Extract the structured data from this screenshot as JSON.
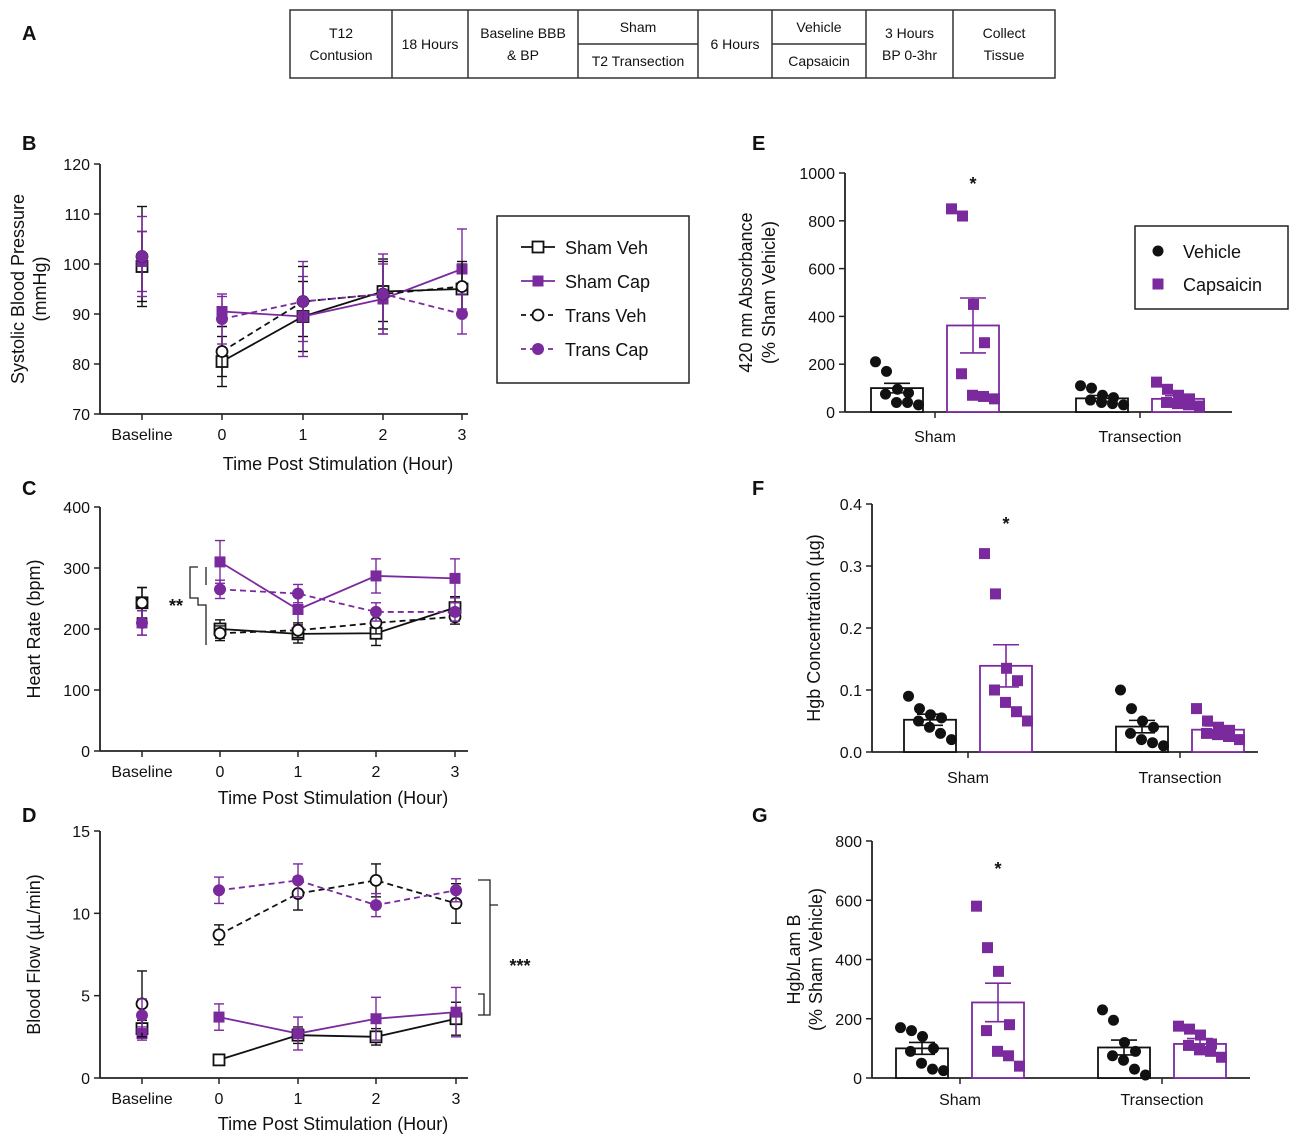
{
  "panels": {
    "A": "A",
    "B": "B",
    "C": "C",
    "D": "D",
    "E": "E",
    "F": "F",
    "G": "G"
  },
  "colors": {
    "purple": "#7B2A9E",
    "black": "#111111"
  },
  "protocol": {
    "steps": [
      {
        "top": "T12",
        "bottom": "Contusion"
      },
      {
        "top": "18 Hours",
        "bottom": ""
      },
      {
        "top": "Baseline BBB",
        "bottom": "& BP"
      },
      {
        "top": "Sham",
        "bottom": "T2 Transection",
        "split": true
      },
      {
        "top": "6 Hours",
        "bottom": ""
      },
      {
        "top": "Vehicle",
        "bottom": "Capsaicin",
        "split": true
      },
      {
        "top": "3 Hours",
        "bottom": "BP 0-3hr"
      },
      {
        "top": "Collect",
        "bottom": "Tissue"
      }
    ]
  },
  "legends": {
    "line": [
      "Sham Veh",
      "Sham Cap",
      "Trans Veh",
      "Trans Cap"
    ],
    "bar": [
      "Vehicle",
      "Capsaicin"
    ]
  },
  "chart_data": [
    {
      "id": "B",
      "type": "line",
      "title": "",
      "xlabel": "Time Post Stimulation (Hour)",
      "ylabel_lines": [
        "Systolic Blood Pressure",
        "(mmHg)"
      ],
      "categories": [
        "Baseline",
        "0",
        "1",
        "2",
        "3"
      ],
      "yticks": [
        70,
        80,
        90,
        100,
        110,
        120
      ],
      "ylim": [
        70,
        120
      ],
      "series": [
        {
          "name": "Sham Veh",
          "values": [
            99.5,
            80.5,
            89.5,
            94.5,
            95
          ],
          "errors": [
            7,
            5,
            7,
            6,
            5
          ]
        },
        {
          "name": "Sham Cap",
          "values": [
            100.5,
            90.5,
            89.5,
            93,
            99
          ],
          "errors": [
            6,
            3,
            8,
            7,
            8
          ]
        },
        {
          "name": "Trans Veh",
          "values": [
            101.5,
            82.5,
            92.5,
            94,
            95.5
          ],
          "errors": [
            10,
            5,
            7,
            7,
            5
          ]
        },
        {
          "name": "Trans Cap",
          "values": [
            101.5,
            89,
            92.5,
            94,
            90
          ],
          "errors": [
            8,
            5,
            8,
            8,
            4
          ]
        }
      ]
    },
    {
      "id": "C",
      "type": "line",
      "title": "",
      "xlabel": "Time Post Stimulation (Hour)",
      "ylabel_lines": [
        "Heart Rate (bpm)"
      ],
      "categories": [
        "Baseline",
        "0",
        "1",
        "2",
        "3"
      ],
      "yticks": [
        0,
        100,
        200,
        300,
        400
      ],
      "ylim": [
        0,
        400
      ],
      "significance": "**",
      "series": [
        {
          "name": "Sham Veh",
          "values": [
            243,
            200,
            192,
            193,
            235
          ],
          "errors": [
            25,
            15,
            15,
            20,
            18
          ]
        },
        {
          "name": "Sham Cap",
          "values": [
            210,
            310,
            232,
            287,
            283
          ],
          "errors": [
            20,
            35,
            25,
            28,
            32
          ]
        },
        {
          "name": "Trans Veh",
          "values": [
            243,
            193,
            198,
            210,
            220
          ],
          "errors": [
            25,
            12,
            12,
            18,
            12
          ]
        },
        {
          "name": "Trans Cap",
          "values": [
            210,
            265,
            258,
            228,
            228
          ],
          "errors": [
            20,
            15,
            15,
            15,
            15
          ]
        }
      ]
    },
    {
      "id": "D",
      "type": "line",
      "title": "",
      "xlabel": "Time Post Stimulation (Hour)",
      "ylabel_lines": [
        "Blood Flow (µL/min)"
      ],
      "categories": [
        "Baseline",
        "0",
        "1",
        "2",
        "3"
      ],
      "yticks": [
        0,
        5,
        10,
        15
      ],
      "ylim": [
        0,
        15
      ],
      "significance": "***",
      "series": [
        {
          "name": "Sham Veh",
          "values": [
            3.0,
            1.1,
            2.6,
            2.5,
            3.6
          ],
          "errors": [
            0.5,
            0.2,
            0.5,
            0.5,
            1.0
          ]
        },
        {
          "name": "Sham Cap",
          "values": [
            2.7,
            3.7,
            2.7,
            3.6,
            4.0
          ],
          "errors": [
            0.4,
            0.8,
            1.0,
            1.3,
            1.5
          ]
        },
        {
          "name": "Trans Veh",
          "values": [
            4.5,
            8.7,
            11.2,
            12.0,
            10.6
          ],
          "errors": [
            2.0,
            0.6,
            1.0,
            1.0,
            1.2
          ]
        },
        {
          "name": "Trans Cap",
          "values": [
            3.8,
            11.4,
            12.0,
            10.5,
            11.4
          ],
          "errors": [
            1.0,
            0.8,
            1.0,
            0.7,
            0.7
          ]
        }
      ]
    },
    {
      "id": "E",
      "type": "bar",
      "title": "",
      "xlabel": "",
      "ylabel_lines": [
        "420 nm Absorbance",
        "(% Sham Vehicle)"
      ],
      "categories": [
        "Sham",
        "Transection"
      ],
      "yticks": [
        0,
        200,
        400,
        600,
        800,
        1000
      ],
      "ylim": [
        0,
        1000
      ],
      "star": "*",
      "series": [
        {
          "name": "Vehicle",
          "means": [
            100,
            57
          ],
          "sem": [
            20,
            12
          ],
          "points": [
            [
              210,
              170,
              95,
              80,
              75,
              40,
              40,
              30
            ],
            [
              110,
              100,
              70,
              60,
              50,
              40,
              35,
              30
            ]
          ]
        },
        {
          "name": "Capsaicin",
          "means": [
            362,
            55
          ],
          "sem": [
            115,
            13
          ],
          "points": [
            [
              850,
              820,
              450,
              290,
              160,
              70,
              65,
              55
            ],
            [
              125,
              95,
              70,
              55,
              40,
              35,
              30,
              25
            ]
          ]
        }
      ]
    },
    {
      "id": "F",
      "type": "bar",
      "title": "",
      "xlabel": "",
      "ylabel_lines": [
        "Hgb Concentration (µg)"
      ],
      "categories": [
        "Sham",
        "Transection"
      ],
      "yticks": [
        0.0,
        0.1,
        0.2,
        0.3,
        0.4
      ],
      "ylim": [
        0,
        0.4
      ],
      "star": "*",
      "series": [
        {
          "name": "Vehicle",
          "means": [
            0.052,
            0.041
          ],
          "sem": [
            0.009,
            0.01
          ],
          "points": [
            [
              0.09,
              0.07,
              0.06,
              0.055,
              0.05,
              0.04,
              0.03,
              0.02
            ],
            [
              0.1,
              0.07,
              0.05,
              0.04,
              0.03,
              0.02,
              0.015,
              0.01
            ]
          ]
        },
        {
          "name": "Capsaicin",
          "means": [
            0.139,
            0.036
          ],
          "sem": [
            0.034,
            0.006
          ],
          "points": [
            [
              0.32,
              0.255,
              0.135,
              0.115,
              0.1,
              0.08,
              0.065,
              0.05
            ],
            [
              0.07,
              0.05,
              0.04,
              0.035,
              0.03,
              0.028,
              0.025,
              0.02
            ]
          ]
        }
      ]
    },
    {
      "id": "G",
      "type": "bar",
      "title": "",
      "xlabel": "",
      "ylabel_lines": [
        "Hgb/Lam B",
        "(% Sham Vehicle)"
      ],
      "categories": [
        "Sham",
        "Transection"
      ],
      "yticks": [
        0,
        200,
        400,
        600,
        800
      ],
      "ylim": [
        0,
        800
      ],
      "star": "*",
      "series": [
        {
          "name": "Vehicle",
          "means": [
            100,
            103
          ],
          "sem": [
            20,
            25
          ],
          "points": [
            [
              170,
              160,
              140,
              100,
              90,
              50,
              30,
              25
            ],
            [
              230,
              195,
              120,
              90,
              75,
              60,
              30,
              10
            ]
          ]
        },
        {
          "name": "Capsaicin",
          "means": [
            255,
            115
          ],
          "sem": [
            65,
            18
          ],
          "points": [
            [
              580,
              440,
              360,
              180,
              160,
              90,
              75,
              40
            ],
            [
              175,
              165,
              145,
              115,
              110,
              95,
              90,
              70
            ]
          ]
        }
      ]
    }
  ]
}
